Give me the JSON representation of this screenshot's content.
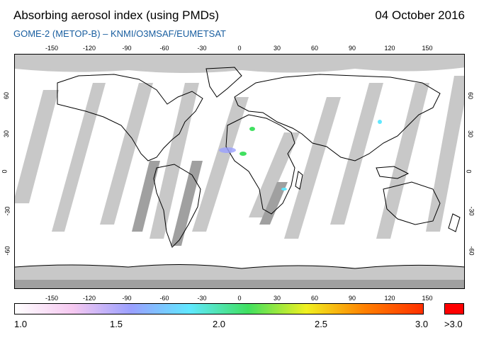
{
  "header": {
    "title": "Absorbing aerosol index (using PMDs)",
    "date": "04 October 2016",
    "subtitle": "GOME-2 (METOP-B)  –   KNMI/O3MSAF/EUMETSAT"
  },
  "map": {
    "lon_ticks": [
      "-150",
      "-120",
      "-90",
      "-60",
      "-30",
      "0",
      "30",
      "60",
      "90",
      "120",
      "150"
    ],
    "lat_ticks": [
      "60",
      "30",
      "0",
      "-30",
      "-60"
    ],
    "colors": {
      "ocean": "#ffffff",
      "no_data": "#c8c8c8",
      "swath_gap": "#a0a0a0",
      "coastline": "#000000"
    }
  },
  "colorbar": {
    "labels": [
      "1.0",
      "1.5",
      "2.0",
      "2.5",
      "3.0"
    ],
    "max_label": ">3.0",
    "stops": [
      "#ffffff",
      "#f5c8f0",
      "#9aa0ff",
      "#60e8ff",
      "#40e060",
      "#f0f020",
      "#ff8000",
      "#ff3000"
    ],
    "max_color": "#ff0000"
  }
}
